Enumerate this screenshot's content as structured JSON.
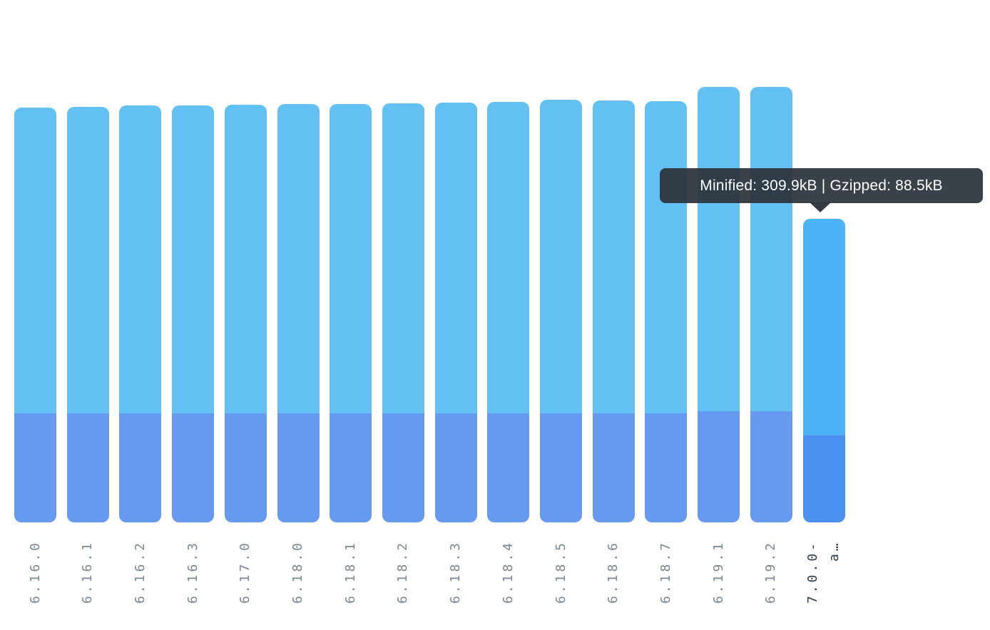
{
  "tooltip": {
    "text": "Minified: 309.9kB | Gzipped: 88.5kB"
  },
  "chart_data": {
    "type": "bar",
    "stacking": "overlay-gzipped-inside-minified",
    "title": "",
    "xlabel": "",
    "ylabel": "",
    "grid": false,
    "legend": false,
    "y_axis_visible": false,
    "units": "kB",
    "categories": [
      "6.16.0",
      "6.16.1",
      "6.16.2",
      "6.16.3",
      "6.17.0",
      "6.18.0",
      "6.18.1",
      "6.18.2",
      "6.18.3",
      "6.18.4",
      "6.18.5",
      "6.18.6",
      "6.18.7",
      "6.19.1",
      "6.19.2",
      "7.0.0-a…"
    ],
    "tick_labels": [
      "6.16.0",
      "6.16.1",
      "6.16.2",
      "6.16.3",
      "6.17.0",
      "6.18.0",
      "6.18.1",
      "6.18.2",
      "6.18.3",
      "6.18.4",
      "6.18.5",
      "6.18.6",
      "6.18.7",
      "6.19.1",
      "6.19.2",
      "7.0.0-\na…"
    ],
    "series": [
      {
        "name": "Minified (kB)",
        "values": [
          423.4,
          424.1,
          425.3,
          425.8,
          426.5,
          427.2,
          427.2,
          427.7,
          428.2,
          429.0,
          431.4,
          430.6,
          430.1,
          444.7,
          444.7,
          309.9
        ]
      },
      {
        "name": "Gzipped (kB)",
        "values": [
          111.3,
          111.3,
          111.3,
          111.3,
          111.3,
          111.3,
          111.3,
          111.3,
          111.3,
          111.3,
          111.3,
          111.3,
          111.3,
          113.5,
          113.5,
          88.5
        ]
      }
    ],
    "hovered_index": 15,
    "hovered_tooltip": "Minified: 309.9kB | Gzipped: 88.5kB",
    "colors": {
      "minified": "#63c0f3",
      "gzipped": "#6699f0",
      "minified_hover": "#4cb4f6",
      "gzipped_hover": "#4a90f1",
      "tick_label": "#7b8794",
      "tick_label_hover": "#333d49",
      "tooltip_bg": "#2c333b",
      "tooltip_text": "#ffffff"
    }
  }
}
